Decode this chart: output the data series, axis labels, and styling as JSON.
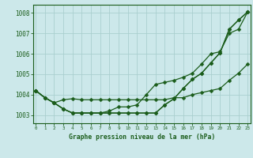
{
  "title": "Graphe pression niveau de la mer (hPa)",
  "xlabel_ticks": [
    0,
    1,
    2,
    3,
    4,
    5,
    6,
    7,
    8,
    9,
    10,
    11,
    12,
    13,
    14,
    15,
    16,
    17,
    18,
    19,
    20,
    21,
    22,
    23
  ],
  "ylim": [
    1002.6,
    1008.4
  ],
  "xlim": [
    -0.3,
    23.3
  ],
  "yticks": [
    1003,
    1004,
    1005,
    1006,
    1007,
    1008
  ],
  "background_color": "#cce8ea",
  "grid_color": "#aacfcf",
  "line_color": "#1a5c1a",
  "line1_y": [
    1004.2,
    1003.85,
    1003.6,
    1003.3,
    1003.1,
    1003.1,
    1003.1,
    1003.1,
    1003.1,
    1003.1,
    1003.1,
    1003.1,
    1003.1,
    1003.1,
    1003.5,
    1003.8,
    1004.3,
    1004.75,
    1005.05,
    1005.55,
    1006.05,
    1007.2,
    1007.65,
    1008.05
  ],
  "line2_y": [
    1004.2,
    1003.85,
    1003.6,
    1003.3,
    1003.1,
    1003.1,
    1003.1,
    1003.1,
    1003.2,
    1003.4,
    1003.4,
    1003.5,
    1004.0,
    1004.5,
    1004.6,
    1004.7,
    1004.85,
    1005.05,
    1005.5,
    1006.0,
    1006.1,
    1007.0,
    1007.2,
    1008.05
  ],
  "line3_y": [
    1004.2,
    1003.85,
    1003.6,
    1003.75,
    1003.8,
    1003.75,
    1003.75,
    1003.75,
    1003.75,
    1003.75,
    1003.75,
    1003.75,
    1003.75,
    1003.75,
    1003.75,
    1003.85,
    1003.85,
    1004.0,
    1004.1,
    1004.2,
    1004.3,
    1004.7,
    1005.05,
    1005.5
  ],
  "line4_y": [
    1004.2,
    1003.85,
    1003.6,
    1003.3,
    1003.1,
    1003.1,
    1003.1,
    1003.1,
    1003.1,
    1003.1,
    1003.1,
    1003.1,
    1003.1,
    1003.1,
    1003.5,
    1003.8,
    1004.3,
    1004.75,
    1005.05,
    1005.55,
    1006.05,
    1007.2,
    1007.65,
    1008.05
  ]
}
